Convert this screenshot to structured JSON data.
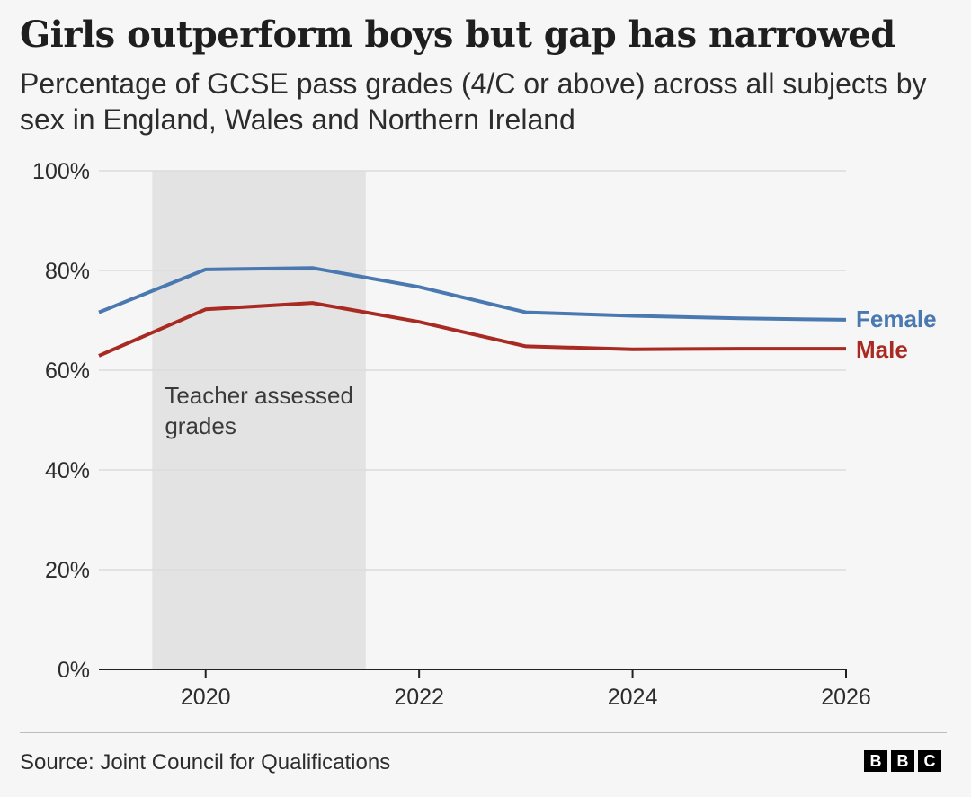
{
  "header": {
    "title": "Girls outperform boys but gap has narrowed",
    "subtitle": "Percentage of GCSE pass grades (4/C or above) across all subjects by sex in England, Wales and Northern Ireland"
  },
  "footer": {
    "source": "Source: Joint Council for Qualifications",
    "logo_letters": [
      "B",
      "B",
      "C"
    ]
  },
  "chart_data": {
    "type": "line",
    "title": "Girls outperform boys but gap has narrowed",
    "subtitle": "Percentage of GCSE pass grades (4/C or above) across all subjects by sex in England, Wales and Northern Ireland",
    "xlabel": "",
    "ylabel": "",
    "x": [
      2019,
      2020,
      2021,
      2022,
      2023,
      2024,
      2025,
      2026
    ],
    "series": [
      {
        "name": "Female",
        "color": "#4a78b0",
        "values": [
          71.6,
          80.2,
          80.5,
          76.7,
          71.6,
          70.9,
          70.4,
          70.1
        ]
      },
      {
        "name": "Male",
        "color": "#a82a22",
        "values": [
          62.9,
          72.2,
          73.5,
          69.7,
          64.8,
          64.2,
          64.3,
          64.3
        ]
      }
    ],
    "xlim": [
      2019,
      2026
    ],
    "ylim": [
      0,
      100
    ],
    "y_ticks": [
      0,
      20,
      40,
      60,
      80,
      100
    ],
    "y_tick_labels": [
      "0%",
      "20%",
      "40%",
      "60%",
      "80%",
      "100%"
    ],
    "x_ticks": [
      2020,
      2022,
      2024,
      2026
    ],
    "x_tick_labels": [
      "2020",
      "2022",
      "2024",
      "2026"
    ],
    "grid": true,
    "legend": "labels at line ends (right)",
    "shaded_region": {
      "x_start": 2019.5,
      "x_end": 2021.5,
      "label": "Teacher assessed grades",
      "color": "#e3e3e3"
    }
  }
}
